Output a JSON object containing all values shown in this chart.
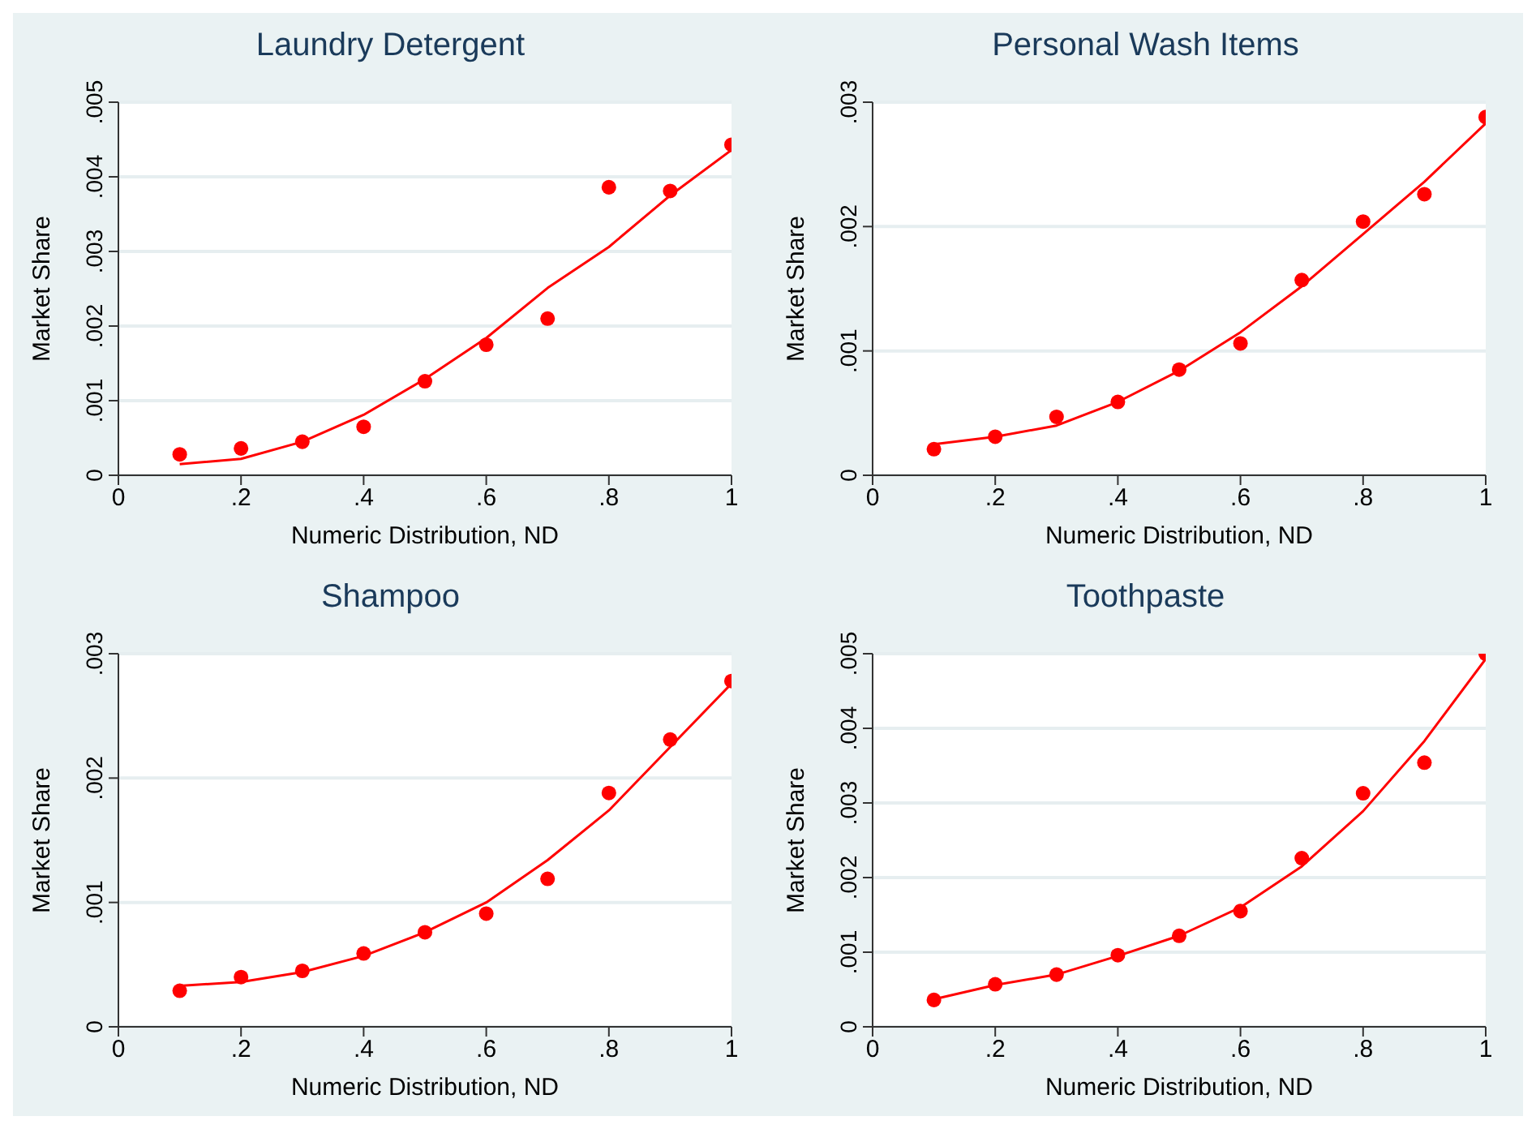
{
  "chart_data": [
    {
      "type": "scatter",
      "title": "Laundry Detergent",
      "xlabel": "Numeric Distribution, ND",
      "ylabel": "Market Share",
      "legend": false,
      "xlim": [
        0,
        1
      ],
      "xticks": [
        {
          "value": 0,
          "label": "0"
        },
        {
          "value": 0.2,
          "label": ".2"
        },
        {
          "value": 0.4,
          "label": ".4"
        },
        {
          "value": 0.6,
          "label": ".6"
        },
        {
          "value": 0.8,
          "label": ".8"
        },
        {
          "value": 1,
          "label": "1"
        }
      ],
      "ylim": [
        0,
        0.005
      ],
      "yticks": [
        {
          "value": 0,
          "label": "0"
        },
        {
          "value": 0.001,
          "label": ".001"
        },
        {
          "value": 0.002,
          "label": ".002"
        },
        {
          "value": 0.003,
          "label": ".003"
        },
        {
          "value": 0.004,
          "label": ".004"
        },
        {
          "value": 0.005,
          "label": ".005"
        }
      ],
      "grid": "y",
      "series": [
        {
          "marker": "circle",
          "color": "#ff0000",
          "x": [
            0.1,
            0.2,
            0.3,
            0.4,
            0.5,
            0.6,
            0.7,
            0.8,
            0.9,
            1
          ],
          "values": [
            0.00028,
            0.00036,
            0.00045,
            0.00065,
            0.00126,
            0.00175,
            0.0021,
            0.00386,
            0.00381,
            0.00443
          ]
        },
        {
          "type": "line",
          "marker": "none",
          "color": "#ff0000",
          "x": [
            0.1,
            0.2,
            0.3,
            0.4,
            0.5,
            0.6,
            0.7,
            0.8,
            0.9,
            1
          ],
          "values": [
            0.00015,
            0.00022,
            0.00045,
            0.00081,
            0.00129,
            0.00184,
            0.00251,
            0.00306,
            0.00375,
            0.00436
          ]
        }
      ]
    },
    {
      "type": "scatter",
      "title": "Personal Wash Items",
      "xlabel": "Numeric Distribution, ND",
      "ylabel": "Market Share",
      "legend": false,
      "xlim": [
        0,
        1
      ],
      "xticks": [
        {
          "value": 0,
          "label": "0"
        },
        {
          "value": 0.2,
          "label": ".2"
        },
        {
          "value": 0.4,
          "label": ".4"
        },
        {
          "value": 0.6,
          "label": ".6"
        },
        {
          "value": 0.8,
          "label": ".8"
        },
        {
          "value": 1,
          "label": "1"
        }
      ],
      "ylim": [
        0,
        0.003
      ],
      "yticks": [
        {
          "value": 0,
          "label": "0"
        },
        {
          "value": 0.001,
          "label": ".001"
        },
        {
          "value": 0.002,
          "label": ".002"
        },
        {
          "value": 0.003,
          "label": ".003"
        }
      ],
      "grid": "y",
      "series": [
        {
          "marker": "circle",
          "color": "#ff0000",
          "x": [
            0.1,
            0.2,
            0.3,
            0.4,
            0.5,
            0.6,
            0.7,
            0.8,
            0.9,
            1
          ],
          "values": [
            0.00021,
            0.00031,
            0.00047,
            0.00059,
            0.00085,
            0.00106,
            0.00157,
            0.00204,
            0.00226,
            0.00288
          ]
        },
        {
          "type": "line",
          "marker": "none",
          "color": "#ff0000",
          "x": [
            0.1,
            0.2,
            0.3,
            0.4,
            0.5,
            0.6,
            0.7,
            0.8,
            0.9,
            1
          ],
          "values": [
            0.00025,
            0.00031,
            0.0004,
            0.00059,
            0.00084,
            0.00115,
            0.00152,
            0.00194,
            0.00236,
            0.00283
          ]
        }
      ]
    },
    {
      "type": "scatter",
      "title": "Shampoo",
      "xlabel": "Numeric Distribution, ND",
      "ylabel": "Market Share",
      "legend": false,
      "xlim": [
        0,
        1
      ],
      "xticks": [
        {
          "value": 0,
          "label": "0"
        },
        {
          "value": 0.2,
          "label": ".2"
        },
        {
          "value": 0.4,
          "label": ".4"
        },
        {
          "value": 0.6,
          "label": ".6"
        },
        {
          "value": 0.8,
          "label": ".8"
        },
        {
          "value": 1,
          "label": "1"
        }
      ],
      "ylim": [
        0,
        0.003
      ],
      "yticks": [
        {
          "value": 0,
          "label": "0"
        },
        {
          "value": 0.001,
          "label": ".001"
        },
        {
          "value": 0.002,
          "label": ".002"
        },
        {
          "value": 0.003,
          "label": ".003"
        }
      ],
      "grid": "y",
      "series": [
        {
          "marker": "circle",
          "color": "#ff0000",
          "x": [
            0.1,
            0.2,
            0.3,
            0.4,
            0.5,
            0.6,
            0.7,
            0.8,
            0.9,
            1
          ],
          "values": [
            0.00029,
            0.0004,
            0.00045,
            0.00059,
            0.00076,
            0.00091,
            0.00119,
            0.00188,
            0.00231,
            0.00278
          ]
        },
        {
          "type": "line",
          "marker": "none",
          "color": "#ff0000",
          "x": [
            0.1,
            0.2,
            0.3,
            0.4,
            0.5,
            0.6,
            0.7,
            0.8,
            0.9,
            1
          ],
          "values": [
            0.00033,
            0.00036,
            0.00044,
            0.00057,
            0.00076,
            0.001,
            0.00134,
            0.00174,
            0.00225,
            0.00276
          ]
        }
      ]
    },
    {
      "type": "scatter",
      "title": "Toothpaste",
      "xlabel": "Numeric Distribution, ND",
      "ylabel": "Market Share",
      "legend": false,
      "xlim": [
        0,
        1
      ],
      "xticks": [
        {
          "value": 0,
          "label": "0"
        },
        {
          "value": 0.2,
          "label": ".2"
        },
        {
          "value": 0.4,
          "label": ".4"
        },
        {
          "value": 0.6,
          "label": ".6"
        },
        {
          "value": 0.8,
          "label": ".8"
        },
        {
          "value": 1,
          "label": "1"
        }
      ],
      "ylim": [
        0,
        0.005
      ],
      "yticks": [
        {
          "value": 0,
          "label": "0"
        },
        {
          "value": 0.001,
          "label": ".001"
        },
        {
          "value": 0.002,
          "label": ".002"
        },
        {
          "value": 0.003,
          "label": ".003"
        },
        {
          "value": 0.004,
          "label": ".004"
        },
        {
          "value": 0.005,
          "label": ".005"
        }
      ],
      "grid": "y",
      "series": [
        {
          "marker": "circle",
          "color": "#ff0000",
          "x": [
            0.1,
            0.2,
            0.3,
            0.4,
            0.5,
            0.6,
            0.7,
            0.8,
            0.9,
            1
          ],
          "values": [
            0.00036,
            0.00057,
            0.0007,
            0.00096,
            0.00122,
            0.00155,
            0.00226,
            0.00313,
            0.00354,
            0.005
          ]
        },
        {
          "type": "line",
          "marker": "none",
          "color": "#ff0000",
          "x": [
            0.1,
            0.2,
            0.3,
            0.4,
            0.5,
            0.6,
            0.7,
            0.8,
            0.9,
            1
          ],
          "values": [
            0.00037,
            0.00056,
            0.0007,
            0.00095,
            0.00122,
            0.0016,
            0.00215,
            0.00289,
            0.00383,
            0.00493
          ]
        }
      ]
    }
  ]
}
